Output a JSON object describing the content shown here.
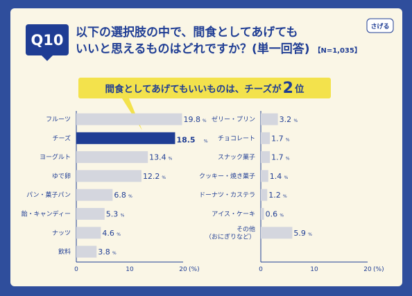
{
  "question": {
    "badge": "Q10",
    "line1": "以下の選択肢の中で、間食としてあげても",
    "line2": "いいと思えるものはどれですか？(単一回答)",
    "n_label": "【N=1,035】"
  },
  "logo_text": "さげる",
  "headline": {
    "before": "間食としてあげてもいいものは、チーズが",
    "rank": "2",
    "after": "位"
  },
  "colors": {
    "background": "#2f4e9c",
    "card": "#faf6e6",
    "bar": "#d4d6de",
    "bar_highlight": "#1f3d94",
    "accent_yellow": "#f3e24c",
    "text": "#1f3d94"
  },
  "chart_data": [
    {
      "type": "bar",
      "orientation": "horizontal",
      "categories": [
        "フルーツ",
        "チーズ",
        "ヨーグルト",
        "ゆで卵",
        "パン・菓子パン",
        "飴・キャンディー",
        "ナッツ",
        "飲料"
      ],
      "values": [
        19.8,
        18.5,
        13.4,
        12.2,
        6.8,
        5.3,
        4.6,
        3.8
      ],
      "highlight": "チーズ",
      "value_unit": "%",
      "xticks": [
        "0",
        "10",
        "20"
      ],
      "xunit": "(%)",
      "xlim": [
        0,
        20
      ]
    },
    {
      "type": "bar",
      "orientation": "horizontal",
      "categories": [
        "ゼリー・プリン",
        "チョコレート",
        "スナック菓子",
        "クッキー・焼き菓子",
        "ドーナツ・カステラ",
        "アイス・ケーキ",
        "その他\n（おにぎりなど）"
      ],
      "values": [
        3.2,
        1.7,
        1.7,
        1.4,
        1.2,
        0.6,
        5.9
      ],
      "value_unit": "%",
      "xticks": [
        "0",
        "10",
        "20"
      ],
      "xunit": "(%)",
      "xlim": [
        0,
        20
      ]
    }
  ]
}
